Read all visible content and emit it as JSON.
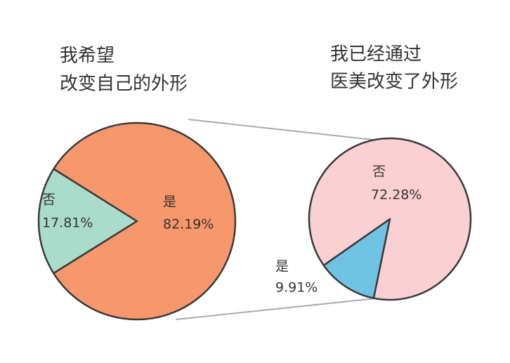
{
  "chart_data": [
    {
      "type": "pie",
      "title": [
        "我希望",
        "改变自己的外形"
      ],
      "categories": [
        "否",
        "是"
      ],
      "values": [
        17.81,
        82.19
      ],
      "value_labels": [
        "17.81%",
        "82.19%"
      ],
      "colors": [
        "#a9dccb",
        "#f7976c"
      ]
    },
    {
      "type": "pie",
      "title": [
        "我已经通过",
        "医美改变了外形"
      ],
      "categories": [
        "否",
        "是"
      ],
      "values": [
        72.28,
        9.91
      ],
      "value_labels": [
        "72.28%",
        "9.91%"
      ],
      "colors": [
        "#fbd0d3",
        "#6fc3e3"
      ]
    }
  ]
}
